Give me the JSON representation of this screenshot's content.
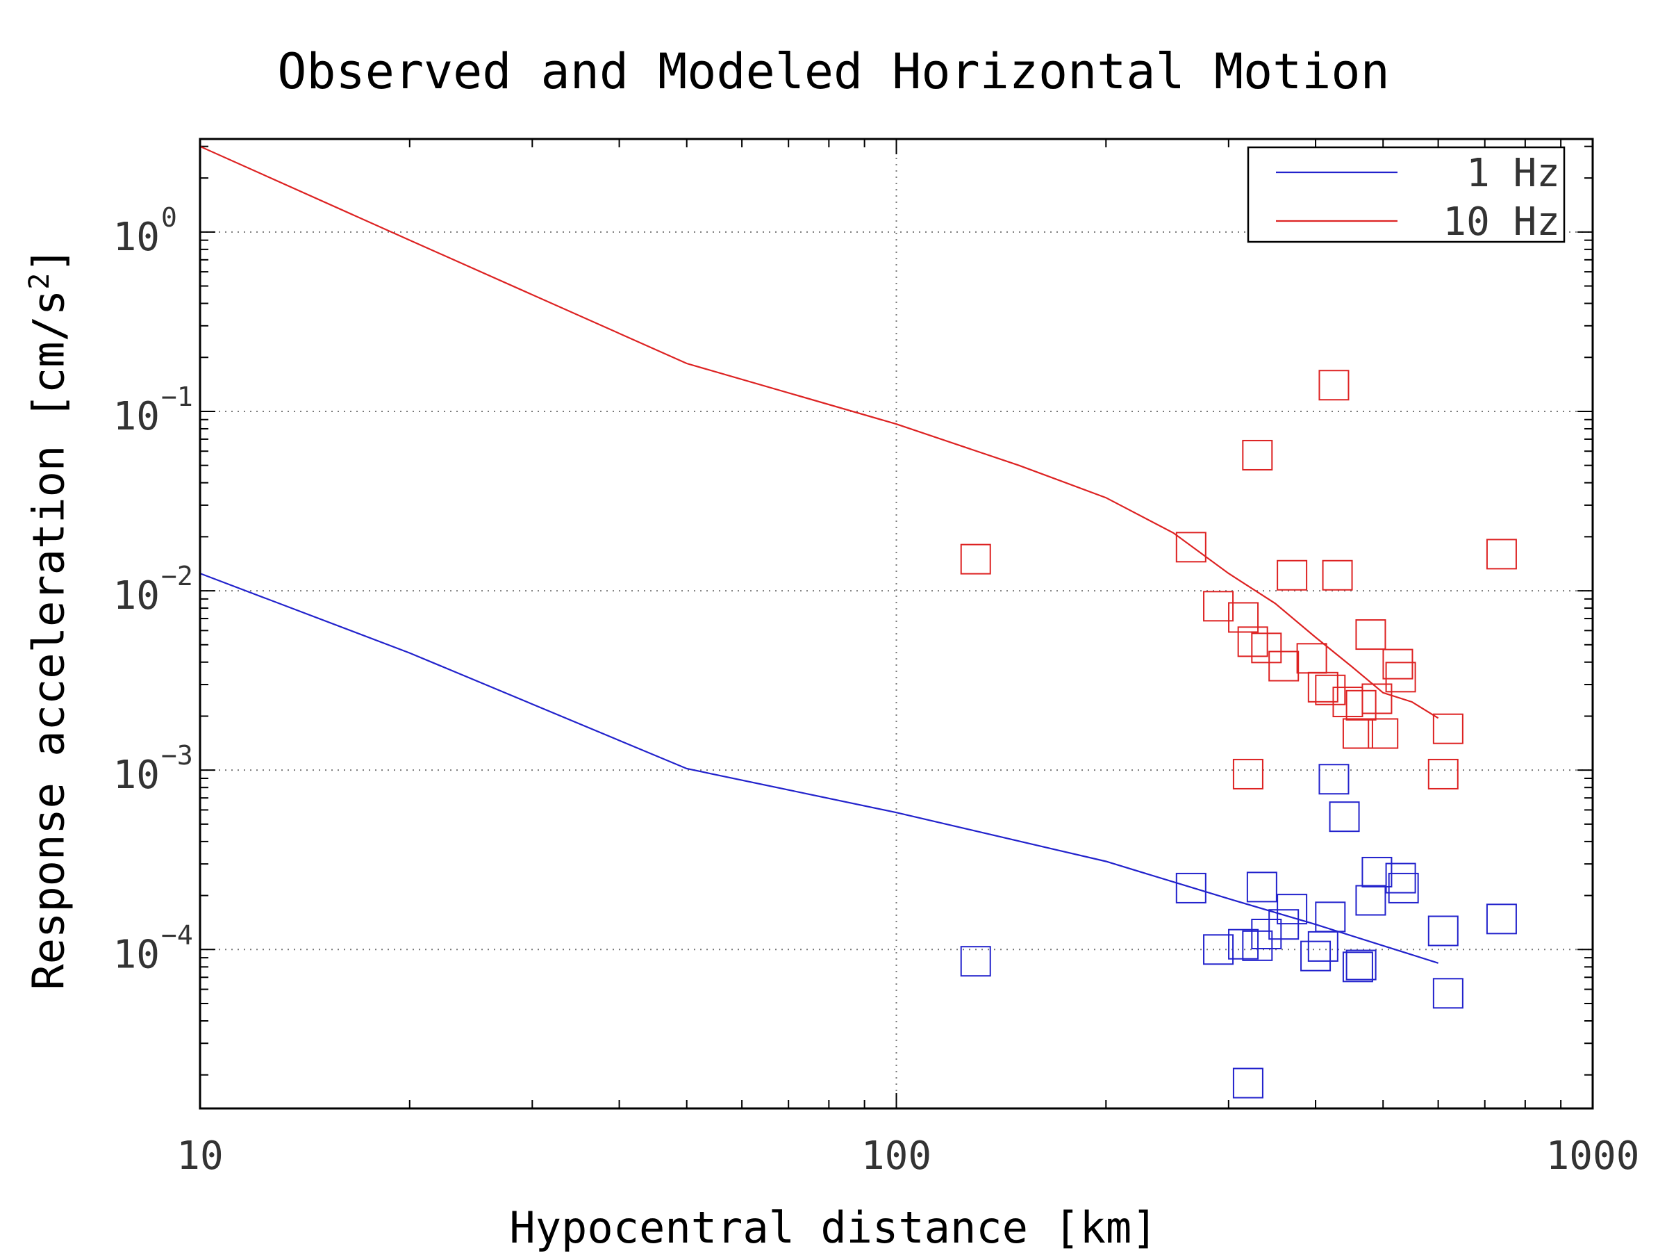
{
  "chart_data": {
    "type": "scatter",
    "title": "Observed and Modeled Horizontal Motion",
    "xlabel": "Hypocentral distance [km]",
    "ylabel": "Response acceleration [cm/s",
    "ylabel_sup": "2",
    "ylabel_close": "]",
    "xscale": "log",
    "yscale": "log",
    "xlim": [
      10,
      1000
    ],
    "ylim": [
      1.3e-05,
      3.3
    ],
    "x_ticks": [
      {
        "value": 10,
        "label": "10"
      },
      {
        "value": 100,
        "label": "100"
      },
      {
        "value": 1000,
        "label": "1000"
      }
    ],
    "y_ticks": [
      {
        "value": 1,
        "base": "10",
        "exp": "0"
      },
      {
        "value": 0.1,
        "base": "10",
        "exp": "−1"
      },
      {
        "value": 0.01,
        "base": "10",
        "exp": "−2"
      },
      {
        "value": 0.001,
        "base": "10",
        "exp": "−3"
      },
      {
        "value": 0.0001,
        "base": "10",
        "exp": "−4"
      }
    ],
    "grid": true,
    "legend": {
      "placement": "top-right"
    },
    "series": [
      {
        "name": "1 Hz",
        "color": "#2222cc",
        "line": {
          "x": [
            10,
            20,
            50,
            100,
            200,
            300,
            400,
            500,
            600
          ],
          "y": [
            0.0125,
            0.0045,
            0.00102,
            0.00058,
            0.00031,
            0.000192,
            0.000138,
            0.000105,
            8.4e-05
          ]
        },
        "points": {
          "x": [
            130,
            265,
            290,
            315,
            320,
            330,
            335,
            340,
            360,
            370,
            400,
            410,
            420,
            425,
            440,
            460,
            465,
            480,
            490,
            530,
            535,
            610,
            620,
            740
          ],
          "y": [
            8.6e-05,
            0.00022,
            0.0001,
            0.000107,
            1.8e-05,
            0.000105,
            0.000223,
            0.000122,
            0.000138,
            0.000168,
            9.2e-05,
            0.000104,
            0.000152,
            0.00089,
            0.00055,
            8e-05,
            8.2e-05,
            0.000188,
            0.00027,
            0.00025,
            0.00022,
            0.000127,
            5.7e-05,
            0.000148
          ]
        }
      },
      {
        "name": "10 Hz",
        "color": "#dd2222",
        "line": {
          "x": [
            10,
            20,
            50,
            100,
            150,
            200,
            250,
            300,
            350,
            400,
            450,
            500,
            550,
            600
          ],
          "y": [
            3.0,
            0.9,
            0.185,
            0.085,
            0.05,
            0.033,
            0.021,
            0.0125,
            0.0085,
            0.0055,
            0.0038,
            0.0027,
            0.0024,
            0.00195
          ]
        },
        "points": {
          "x": [
            130,
            265,
            290,
            315,
            320,
            325,
            330,
            340,
            360,
            370,
            395,
            410,
            420,
            425,
            430,
            445,
            460,
            465,
            480,
            490,
            500,
            525,
            530,
            610,
            620,
            740
          ],
          "y": [
            0.015,
            0.0175,
            0.0082,
            0.0071,
            0.00095,
            0.0052,
            0.057,
            0.0048,
            0.0038,
            0.0122,
            0.0042,
            0.0029,
            0.0028,
            0.14,
            0.0122,
            0.0024,
            0.0016,
            0.0023,
            0.0057,
            0.0025,
            0.0016,
            0.0039,
            0.0033,
            0.00095,
            0.0017,
            0.016
          ]
        }
      }
    ]
  }
}
